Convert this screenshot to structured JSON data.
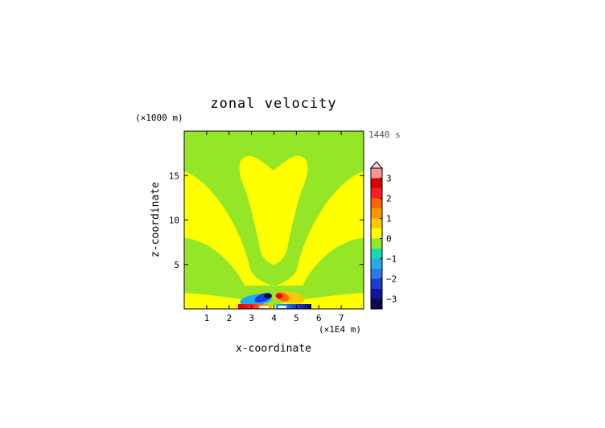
{
  "chart_data": {
    "type": "heatmap",
    "title": "zonal velocity",
    "xlabel": "x-coordinate",
    "ylabel": "z-coordinate",
    "x_unit": "(×1E4 m)",
    "y_unit": "(×1000 m)",
    "time_label": "1440 s",
    "xlim": [
      0,
      8
    ],
    "ylim": [
      0,
      20
    ],
    "x_ticks": [
      1,
      2,
      3,
      4,
      5,
      6,
      7
    ],
    "y_ticks": [
      5,
      10,
      15
    ],
    "x_tick_labels": [
      "1",
      "2",
      "3",
      "4",
      "5",
      "6",
      "7"
    ],
    "y_tick_labels": [
      "5",
      "10",
      "15"
    ],
    "colorbar": {
      "levels": [
        -3.5,
        -3,
        -2.5,
        -2,
        -1.5,
        -1,
        -0.5,
        0,
        0.5,
        1,
        1.5,
        2,
        2.5,
        3,
        3.5
      ],
      "tick_values": [
        -3,
        -2,
        -1,
        0,
        1,
        2,
        3
      ],
      "tick_labels": [
        "−3",
        "−2",
        "−1",
        "0",
        "1",
        "2",
        "3"
      ],
      "colors": [
        "#0a0a50",
        "#1414a0",
        "#1e3cd2",
        "#2d7ae6",
        "#23aaf0",
        "#14dcaa",
        "#96e628",
        "#ffff00",
        "#ffc800",
        "#ff9600",
        "#ff6400",
        "#ff1e1e",
        "#dc0000",
        "#ff9696"
      ],
      "extend": "max"
    },
    "colors": {
      "background": "#96e628",
      "positive_band": "#ffff00"
    }
  }
}
